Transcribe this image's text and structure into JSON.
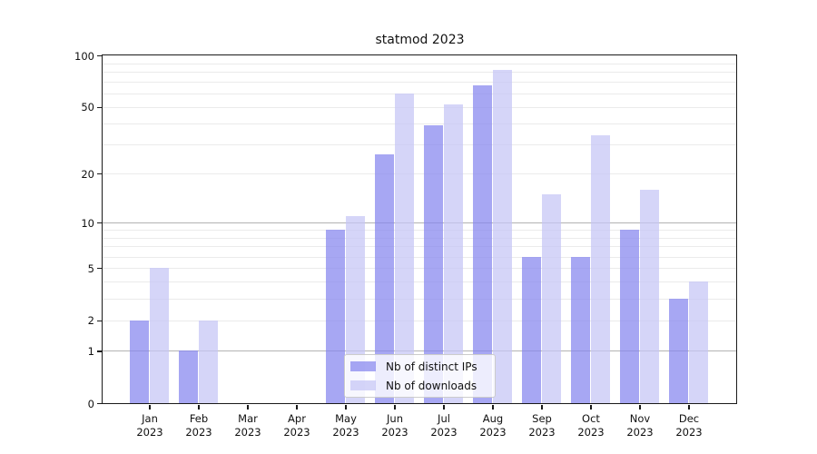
{
  "title": "statmod 2023",
  "legend": {
    "items": [
      {
        "label": "Nb of distinct IPs"
      },
      {
        "label": "Nb of downloads"
      }
    ]
  },
  "chart_data": {
    "type": "bar",
    "title": "statmod 2023",
    "categories": [
      "Jan 2023",
      "Feb 2023",
      "Mar 2023",
      "Apr 2023",
      "May 2023",
      "Jun 2023",
      "Jul 2023",
      "Aug 2023",
      "Sep 2023",
      "Oct 2023",
      "Nov 2023",
      "Dec 2023"
    ],
    "series": [
      {
        "name": "Nb of distinct IPs",
        "color": "rgba(133,133,239,0.72)",
        "values": [
          2,
          1,
          0,
          0,
          9,
          26,
          39,
          67,
          6,
          6,
          9,
          3
        ]
      },
      {
        "name": "Nb of downloads",
        "color": "rgba(197,197,245,0.72)",
        "values": [
          5,
          2,
          0,
          0,
          11,
          60,
          52,
          82,
          15,
          34,
          16,
          4
        ]
      }
    ],
    "xlabel": "",
    "ylabel": "",
    "yscale": "log1p",
    "ylim": [
      0,
      100
    ],
    "y_ticks": [
      0,
      1,
      2,
      5,
      10,
      20,
      50,
      100
    ],
    "y_major_gridlines": [
      1,
      10
    ],
    "y_minor_gridlines": [
      2,
      3,
      4,
      5,
      6,
      7,
      8,
      9,
      20,
      30,
      40,
      50,
      60,
      70,
      80,
      90
    ],
    "grid": true,
    "legend_position": "lower center"
  },
  "colors": {
    "bar_ips": "rgba(133,133,239,0.72)",
    "bar_downloads": "rgba(197,197,245,0.72)",
    "grid_major": "#b3b3b3",
    "grid_minor": "#ebebeb",
    "axis": "#1a1a1a",
    "background": "#ffffff"
  }
}
